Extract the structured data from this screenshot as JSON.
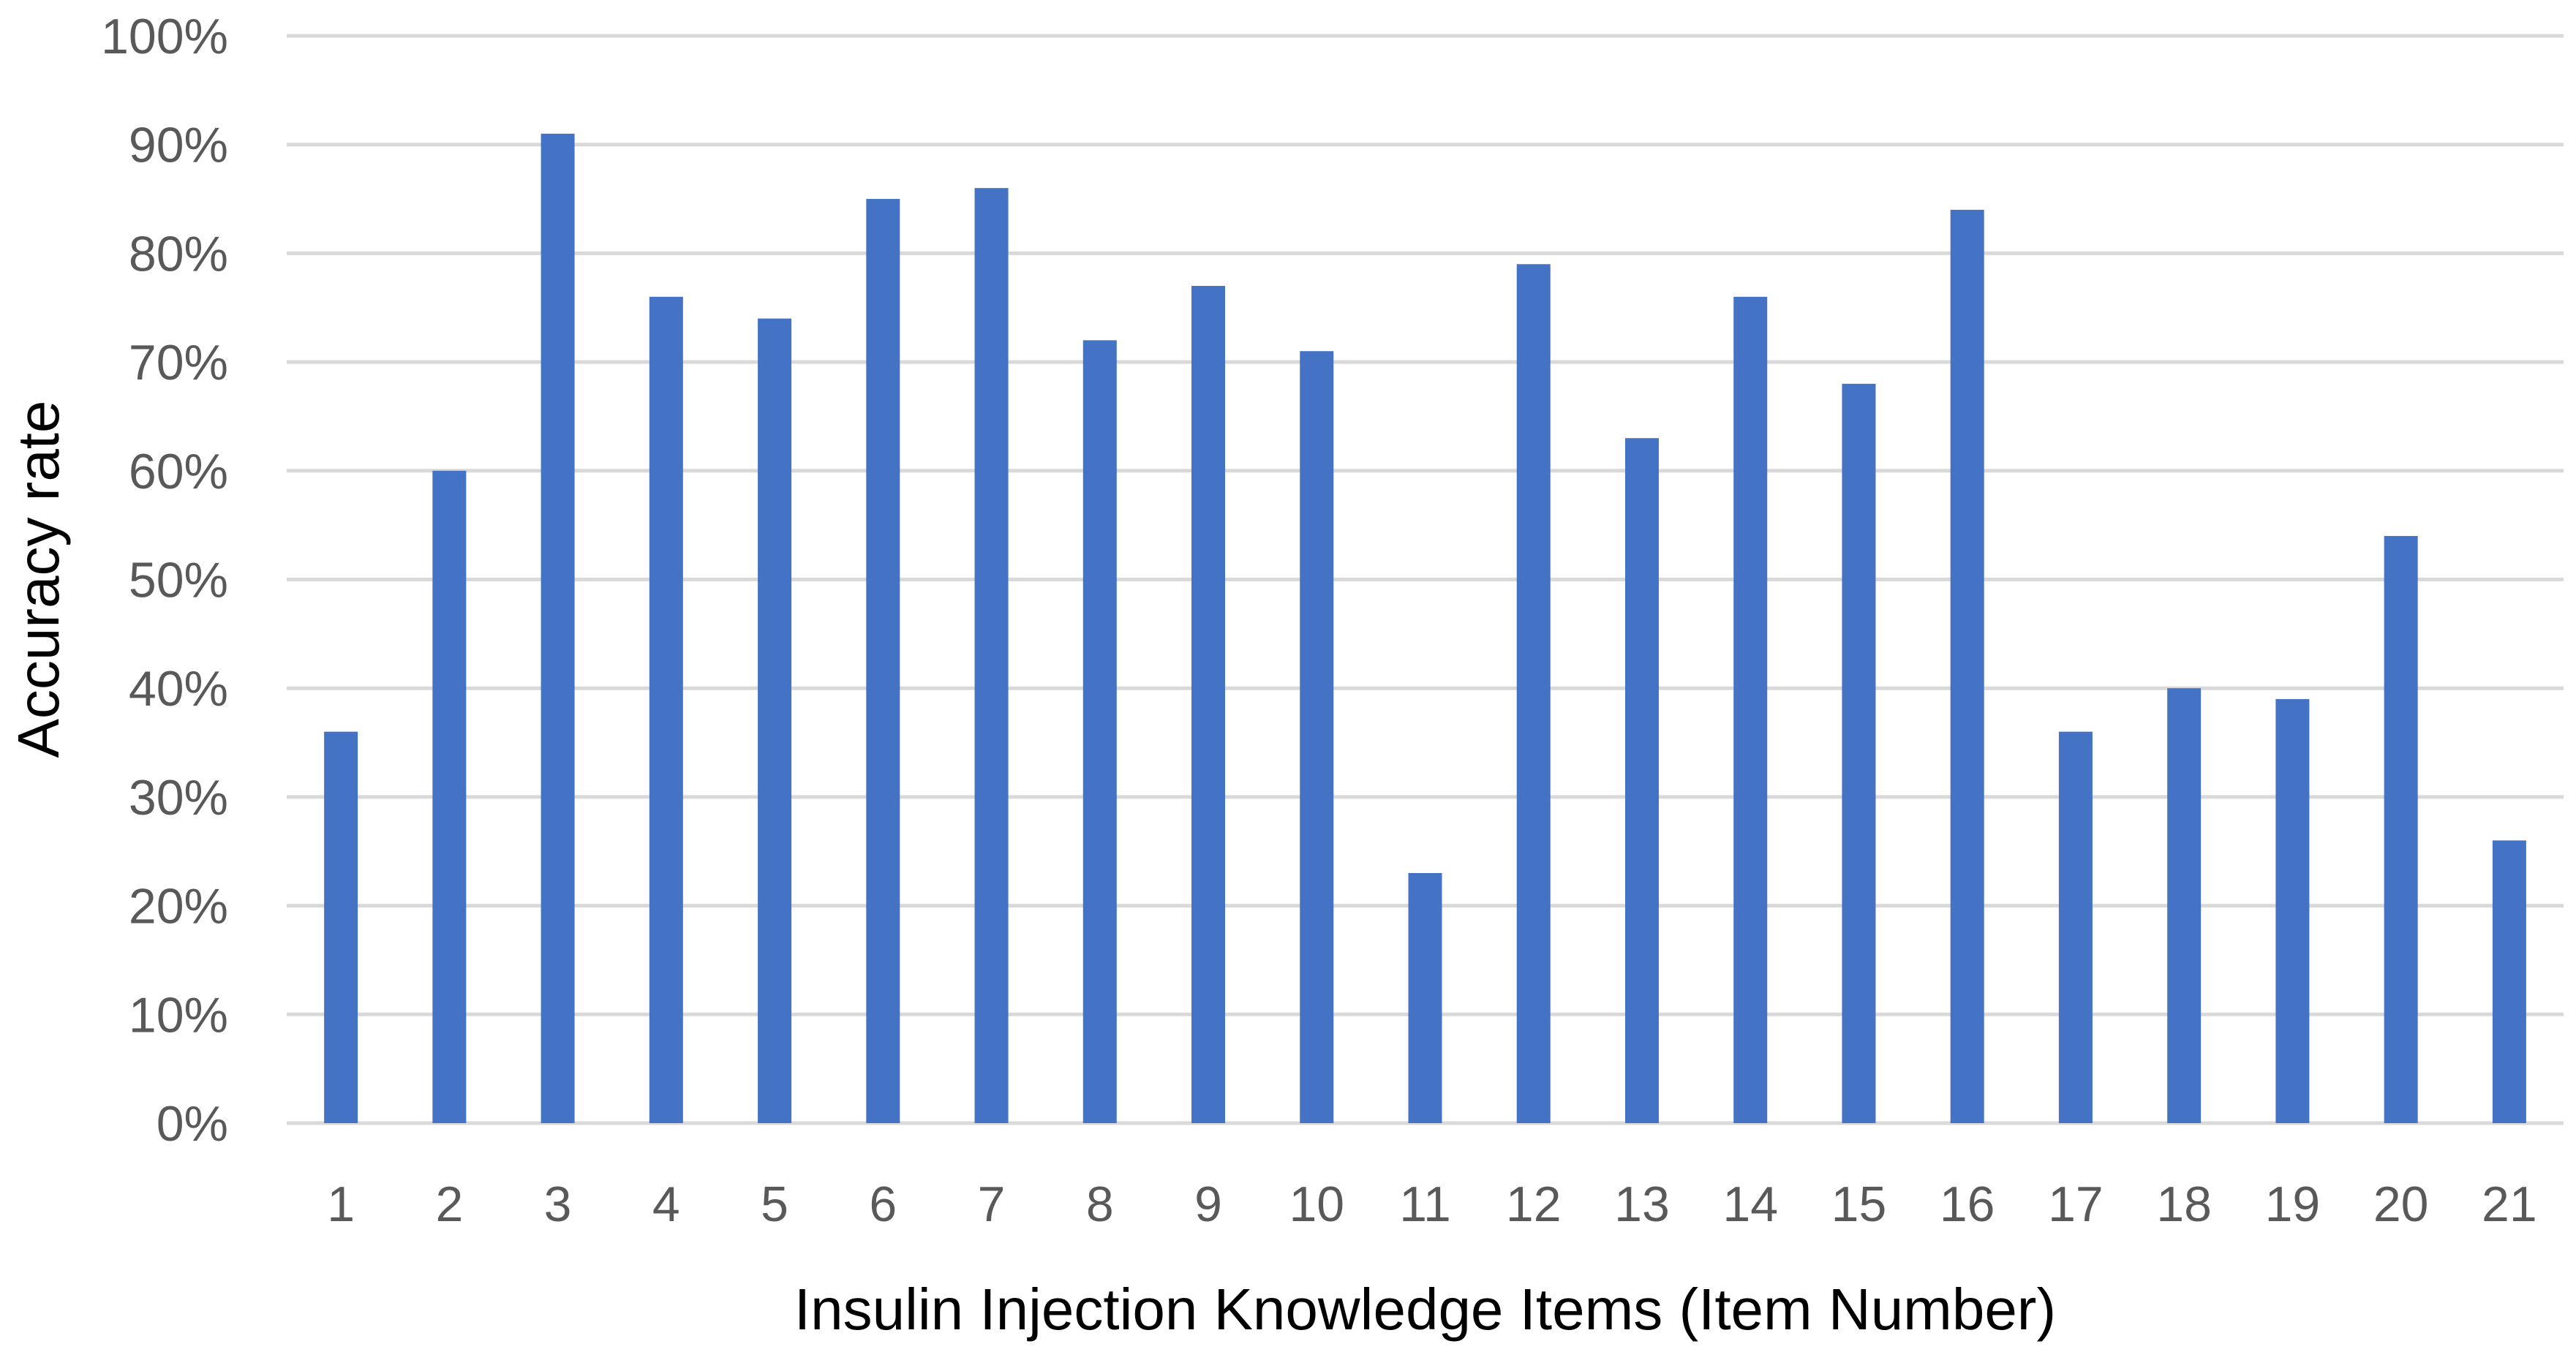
{
  "chart_data": {
    "type": "bar",
    "title": "",
    "xlabel": "Insulin Injection Knowledge Items (Item Number)",
    "ylabel": "Accuracy rate",
    "categories": [
      "1",
      "2",
      "3",
      "4",
      "5",
      "6",
      "7",
      "8",
      "9",
      "10",
      "11",
      "12",
      "13",
      "14",
      "15",
      "16",
      "17",
      "18",
      "19",
      "20",
      "21"
    ],
    "values": [
      36,
      60,
      91,
      76,
      74,
      85,
      86,
      72,
      77,
      71,
      23,
      79,
      63,
      76,
      68,
      84,
      36,
      40,
      39,
      54,
      26
    ],
    "ylim": [
      0,
      100
    ],
    "yticks": [
      "0%",
      "10%",
      "20%",
      "30%",
      "40%",
      "50%",
      "60%",
      "70%",
      "80%",
      "90%",
      "100%"
    ],
    "grid": true,
    "legend": "none",
    "bar_color": "#4472C4",
    "grid_color": "#d9d9d9",
    "tick_color": "#595959"
  }
}
